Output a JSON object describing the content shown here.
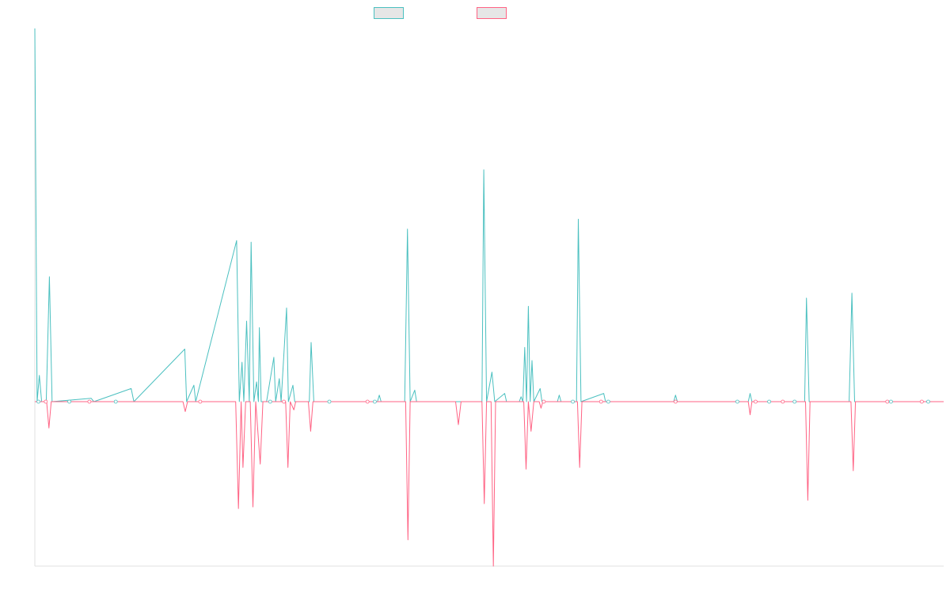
{
  "chart_data": {
    "type": "line",
    "title": "",
    "xlabel": "",
    "ylabel": "",
    "grid": false,
    "legend_position": "top-center",
    "x_range": [
      0,
      100
    ],
    "ylim": [
      -1,
      2.27
    ],
    "colors": {
      "positive": "#4bc0c0",
      "negative": "#ff6384",
      "axis": "#e0e0e0",
      "swatch_fill": "#e6e6e6"
    },
    "series": [
      {
        "key": "positive",
        "color": "#4bc0c0",
        "points": [
          [
            0.0,
            2.27
          ],
          [
            0.25,
            0.0
          ],
          [
            0.5,
            0.16
          ],
          [
            0.75,
            0.0
          ],
          [
            1.25,
            0.0
          ],
          [
            1.6,
            0.76
          ],
          [
            1.9,
            0.0
          ],
          [
            6.2,
            0.02
          ],
          [
            6.5,
            0.0
          ],
          [
            10.6,
            0.08
          ],
          [
            10.9,
            0.0
          ],
          [
            16.5,
            0.32
          ],
          [
            16.7,
            0.0
          ],
          [
            17.5,
            0.1
          ],
          [
            17.7,
            0.0
          ],
          [
            22.2,
            0.98
          ],
          [
            22.5,
            0.0
          ],
          [
            22.8,
            0.24
          ],
          [
            23.0,
            0.0
          ],
          [
            23.3,
            0.49
          ],
          [
            23.6,
            0.0
          ],
          [
            23.8,
            0.97
          ],
          [
            24.1,
            0.0
          ],
          [
            24.4,
            0.12
          ],
          [
            24.6,
            0.0
          ],
          [
            24.7,
            0.45
          ],
          [
            24.9,
            0.0
          ],
          [
            25.5,
            0.0
          ],
          [
            26.3,
            0.27
          ],
          [
            26.5,
            0.0
          ],
          [
            26.9,
            0.14
          ],
          [
            27.1,
            0.0
          ],
          [
            27.7,
            0.57
          ],
          [
            27.9,
            0.0
          ],
          [
            28.4,
            0.1
          ],
          [
            28.6,
            0.0
          ],
          [
            30.2,
            0.0
          ],
          [
            30.4,
            0.36
          ],
          [
            30.7,
            0.0
          ],
          [
            37.7,
            0.0
          ],
          [
            37.9,
            0.04
          ],
          [
            38.1,
            0.0
          ],
          [
            40.7,
            0.0
          ],
          [
            41.0,
            1.05
          ],
          [
            41.3,
            0.0
          ],
          [
            41.8,
            0.07
          ],
          [
            42.0,
            0.0
          ],
          [
            49.2,
            0.0
          ],
          [
            49.4,
            1.41
          ],
          [
            49.7,
            0.0
          ],
          [
            50.3,
            0.18
          ],
          [
            50.6,
            0.0
          ],
          [
            51.7,
            0.05
          ],
          [
            51.9,
            0.0
          ],
          [
            53.3,
            0.0
          ],
          [
            53.5,
            0.03
          ],
          [
            53.7,
            0.0
          ],
          [
            53.9,
            0.33
          ],
          [
            54.1,
            0.0
          ],
          [
            54.3,
            0.58
          ],
          [
            54.5,
            0.0
          ],
          [
            54.7,
            0.25
          ],
          [
            54.9,
            0.0
          ],
          [
            55.6,
            0.08
          ],
          [
            55.8,
            0.0
          ],
          [
            57.5,
            0.0
          ],
          [
            57.7,
            0.04
          ],
          [
            57.9,
            0.0
          ],
          [
            59.6,
            0.0
          ],
          [
            59.8,
            1.11
          ],
          [
            60.1,
            0.0
          ],
          [
            62.6,
            0.05
          ],
          [
            62.8,
            0.0
          ],
          [
            70.3,
            0.0
          ],
          [
            70.5,
            0.04
          ],
          [
            70.7,
            0.0
          ],
          [
            78.5,
            0.0
          ],
          [
            78.7,
            0.05
          ],
          [
            78.9,
            0.0
          ],
          [
            84.7,
            0.0
          ],
          [
            84.9,
            0.63
          ],
          [
            85.2,
            0.0
          ],
          [
            89.6,
            0.0
          ],
          [
            89.9,
            0.66
          ],
          [
            90.2,
            0.0
          ],
          [
            100.0,
            0.0
          ]
        ]
      },
      {
        "key": "negative",
        "color": "#ff6384",
        "points": [
          [
            0.0,
            0.0
          ],
          [
            1.3,
            0.0
          ],
          [
            1.55,
            -0.16
          ],
          [
            1.8,
            0.0
          ],
          [
            16.3,
            0.0
          ],
          [
            16.55,
            -0.06
          ],
          [
            16.8,
            0.0
          ],
          [
            22.1,
            0.0
          ],
          [
            22.4,
            -0.65
          ],
          [
            22.7,
            0.0
          ],
          [
            22.9,
            -0.4
          ],
          [
            23.2,
            0.0
          ],
          [
            23.7,
            0.0
          ],
          [
            24.0,
            -0.64
          ],
          [
            24.3,
            0.0
          ],
          [
            24.8,
            -0.38
          ],
          [
            25.1,
            0.0
          ],
          [
            27.6,
            0.0
          ],
          [
            27.85,
            -0.4
          ],
          [
            28.1,
            0.0
          ],
          [
            28.5,
            -0.05
          ],
          [
            28.7,
            0.0
          ],
          [
            30.1,
            0.0
          ],
          [
            30.35,
            -0.18
          ],
          [
            30.6,
            0.0
          ],
          [
            40.8,
            0.0
          ],
          [
            41.05,
            -0.84
          ],
          [
            41.3,
            0.0
          ],
          [
            46.3,
            0.0
          ],
          [
            46.6,
            -0.14
          ],
          [
            46.9,
            0.0
          ],
          [
            49.2,
            0.0
          ],
          [
            49.45,
            -0.62
          ],
          [
            49.7,
            0.0
          ],
          [
            50.2,
            0.0
          ],
          [
            50.45,
            -1.0
          ],
          [
            50.7,
            0.0
          ],
          [
            53.8,
            0.0
          ],
          [
            54.05,
            -0.41
          ],
          [
            54.3,
            0.0
          ],
          [
            54.6,
            -0.18
          ],
          [
            54.9,
            0.0
          ],
          [
            55.5,
            0.0
          ],
          [
            55.7,
            -0.04
          ],
          [
            55.9,
            0.0
          ],
          [
            59.7,
            0.0
          ],
          [
            59.95,
            -0.4
          ],
          [
            60.2,
            0.0
          ],
          [
            78.5,
            0.0
          ],
          [
            78.7,
            -0.08
          ],
          [
            78.9,
            0.0
          ],
          [
            84.8,
            0.0
          ],
          [
            85.05,
            -0.6
          ],
          [
            85.3,
            0.0
          ],
          [
            89.8,
            0.0
          ],
          [
            90.05,
            -0.42
          ],
          [
            90.3,
            0.0
          ],
          [
            100.0,
            0.0
          ]
        ]
      }
    ],
    "markers": [
      {
        "x": 0.4,
        "y": 0.0
      },
      {
        "x": 1.2,
        "y": 0.0
      },
      {
        "x": 3.8,
        "y": 0.0
      },
      {
        "x": 6.0,
        "y": 0.0
      },
      {
        "x": 8.9,
        "y": 0.0
      },
      {
        "x": 18.2,
        "y": 0.0
      },
      {
        "x": 25.9,
        "y": 0.0
      },
      {
        "x": 27.4,
        "y": 0.0
      },
      {
        "x": 32.4,
        "y": 0.0
      },
      {
        "x": 36.6,
        "y": 0.0
      },
      {
        "x": 37.4,
        "y": 0.0
      },
      {
        "x": 56.0,
        "y": 0.0
      },
      {
        "x": 59.2,
        "y": 0.0
      },
      {
        "x": 62.3,
        "y": 0.0
      },
      {
        "x": 63.1,
        "y": 0.0
      },
      {
        "x": 70.5,
        "y": 0.0
      },
      {
        "x": 77.3,
        "y": 0.0
      },
      {
        "x": 79.3,
        "y": 0.0
      },
      {
        "x": 80.8,
        "y": 0.0
      },
      {
        "x": 82.3,
        "y": 0.0
      },
      {
        "x": 83.6,
        "y": 0.0
      },
      {
        "x": 93.8,
        "y": 0.0
      },
      {
        "x": 94.2,
        "y": 0.0
      },
      {
        "x": 97.6,
        "y": 0.0
      },
      {
        "x": 98.3,
        "y": 0.0
      }
    ]
  }
}
